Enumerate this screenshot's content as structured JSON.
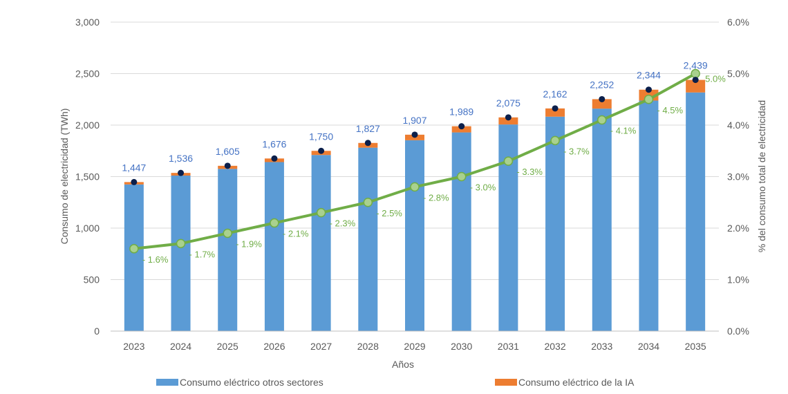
{
  "chart_data": {
    "type": "bar",
    "title": "",
    "xlabel": "Años",
    "ylabel": "Consumo de electricidad (TWh)",
    "y2label": "% del consumo total de electricidad",
    "categories": [
      "2023",
      "2024",
      "2025",
      "2026",
      "2027",
      "2028",
      "2029",
      "2030",
      "2031",
      "2032",
      "2033",
      "2034",
      "2035"
    ],
    "series": [
      {
        "name": "Consumo eléctrico otros sectores",
        "kind": "stacked-bar",
        "color": "#5B9BD5",
        "values": [
          1424,
          1510,
          1575,
          1641,
          1710,
          1781,
          1853,
          1929,
          2006,
          2082,
          2160,
          2238,
          2317
        ]
      },
      {
        "name": "Consumo eléctrico de la IA",
        "kind": "stacked-bar",
        "color": "#ED7D31",
        "values": [
          23,
          26,
          30,
          35,
          40,
          46,
          54,
          60,
          69,
          80,
          92,
          106,
          122
        ]
      },
      {
        "kind": "line",
        "axis": "right",
        "color": "#70AD47",
        "values": [
          1.6,
          1.7,
          1.9,
          2.1,
          2.3,
          2.5,
          2.8,
          3.0,
          3.3,
          3.7,
          4.1,
          4.5,
          5.0
        ],
        "labels": [
          "1.6%",
          "1.7%",
          "1.9%",
          "2.1%",
          "2.3%",
          "2.5%",
          "2.8%",
          "3.0%",
          "3.3%",
          "3.7%",
          "4.1%",
          "4.5%",
          "5.0%"
        ]
      }
    ],
    "totals": [
      1447,
      1536,
      1605,
      1676,
      1750,
      1827,
      1907,
      1989,
      2075,
      2162,
      2252,
      2344,
      2439
    ],
    "total_labels": [
      "1,447",
      "1,536",
      "1,605",
      "1,676",
      "1,750",
      "1,827",
      "1,907",
      "1,989",
      "2,075",
      "2,162",
      "2,252",
      "2,344",
      "2,439"
    ],
    "ylim": [
      0,
      3000
    ],
    "y2lim": [
      0,
      6
    ],
    "yticks": [
      "0",
      "500",
      "1,000",
      "1,500",
      "2,000",
      "2,500",
      "3,000"
    ],
    "y2ticks": [
      "0.0%",
      "1.0%",
      "2.0%",
      "3.0%",
      "4.0%",
      "5.0%",
      "6.0%"
    ],
    "grid": true,
    "legend_position": "bottom",
    "marker_color": "#0B1F4B"
  }
}
